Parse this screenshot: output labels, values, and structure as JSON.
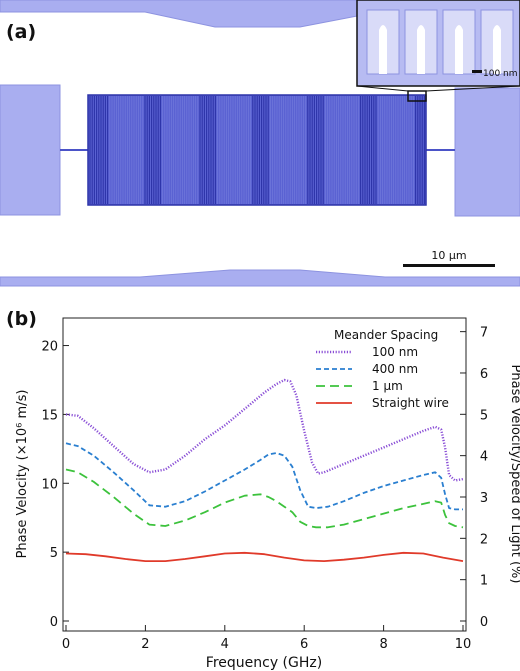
{
  "panel_a": {
    "label": "(a)",
    "inset_scale_label": "100 nm",
    "scale_bar_label": "10 μm",
    "colors": {
      "film": "#a9aef0",
      "meander": "#4b53c8",
      "meander_dark": "#2c33a8",
      "background": "#ffffff"
    }
  },
  "panel_b": {
    "label": "(b)"
  },
  "chart_data": {
    "type": "line",
    "xlabel": "Frequency (GHz)",
    "ylabel": "Phase Velocity (×10⁶ m/s)",
    "y2label": "Phase Velocity/Speed of Light (%)",
    "xlim": [
      0,
      10
    ],
    "ylim": [
      0,
      22
    ],
    "y2lim": [
      0,
      7.33
    ],
    "xticks": [
      "0",
      "2",
      "4",
      "6",
      "8",
      "10"
    ],
    "yticks": [
      "0",
      "5",
      "10",
      "15",
      "20"
    ],
    "y2ticks": [
      "0",
      "1",
      "2",
      "3",
      "4",
      "5",
      "6",
      "7"
    ],
    "grid": false,
    "legend": {
      "title": "Meander Spacing",
      "position": "top-right"
    },
    "series": [
      {
        "name": "100 nm",
        "color": "#8a4fd6",
        "dash": "dotted",
        "x": [
          0,
          0.3,
          0.7,
          1.2,
          1.7,
          2.1,
          2.5,
          3.0,
          3.5,
          4.0,
          4.5,
          5.0,
          5.3,
          5.5,
          5.65,
          5.8,
          6.0,
          6.2,
          6.35,
          6.5,
          7.0,
          7.5,
          8.0,
          8.5,
          9.0,
          9.3,
          9.45,
          9.55,
          9.65,
          9.8,
          10.0
        ],
        "y": [
          15.0,
          14.9,
          14.0,
          12.7,
          11.4,
          10.8,
          11.0,
          12.0,
          13.2,
          14.2,
          15.4,
          16.6,
          17.2,
          17.5,
          17.4,
          16.4,
          13.8,
          11.5,
          10.7,
          10.8,
          11.4,
          12.0,
          12.6,
          13.2,
          13.8,
          14.1,
          13.9,
          12.6,
          10.6,
          10.2,
          10.3
        ]
      },
      {
        "name": "400 nm",
        "color": "#2a7fd0",
        "dash": "dashed",
        "x": [
          0,
          0.3,
          0.7,
          1.2,
          1.7,
          2.1,
          2.5,
          3.0,
          3.5,
          4.0,
          4.5,
          4.9,
          5.1,
          5.3,
          5.5,
          5.7,
          5.9,
          6.1,
          6.3,
          6.6,
          7.0,
          7.5,
          8.0,
          8.5,
          9.0,
          9.3,
          9.45,
          9.55,
          9.65,
          9.8,
          10.0
        ],
        "y": [
          12.9,
          12.7,
          12.0,
          10.8,
          9.5,
          8.4,
          8.3,
          8.7,
          9.4,
          10.2,
          11.0,
          11.7,
          12.1,
          12.2,
          12.0,
          11.2,
          9.5,
          8.3,
          8.2,
          8.3,
          8.7,
          9.3,
          9.8,
          10.2,
          10.6,
          10.8,
          10.4,
          9.2,
          8.2,
          8.1,
          8.1
        ]
      },
      {
        "name": "1 μm",
        "color": "#3cc23c",
        "dash": "longdash",
        "x": [
          0,
          0.3,
          0.7,
          1.2,
          1.7,
          2.1,
          2.5,
          3.0,
          3.5,
          4.0,
          4.5,
          4.9,
          5.1,
          5.3,
          5.5,
          5.7,
          5.9,
          6.1,
          6.3,
          6.6,
          7.0,
          7.5,
          8.0,
          8.5,
          9.0,
          9.3,
          9.45,
          9.55,
          9.65,
          9.8,
          10.0
        ],
        "y": [
          11.0,
          10.8,
          10.1,
          9.0,
          7.8,
          7.0,
          6.9,
          7.3,
          7.9,
          8.6,
          9.1,
          9.2,
          9.0,
          8.7,
          8.3,
          7.9,
          7.2,
          6.9,
          6.8,
          6.8,
          7.0,
          7.4,
          7.8,
          8.2,
          8.5,
          8.7,
          8.6,
          7.7,
          7.1,
          6.9,
          6.8
        ]
      },
      {
        "name": "Straight wire",
        "color": "#e03a2a",
        "dash": "solid",
        "x": [
          0,
          0.5,
          1.0,
          1.5,
          2.0,
          2.5,
          3.0,
          3.5,
          4.0,
          4.5,
          5.0,
          5.5,
          6.0,
          6.5,
          7.0,
          7.5,
          8.0,
          8.5,
          9.0,
          9.5,
          10.0
        ],
        "y": [
          4.9,
          4.85,
          4.7,
          4.5,
          4.35,
          4.35,
          4.5,
          4.7,
          4.9,
          4.95,
          4.85,
          4.6,
          4.4,
          4.35,
          4.45,
          4.6,
          4.8,
          4.95,
          4.9,
          4.6,
          4.35
        ]
      }
    ]
  }
}
